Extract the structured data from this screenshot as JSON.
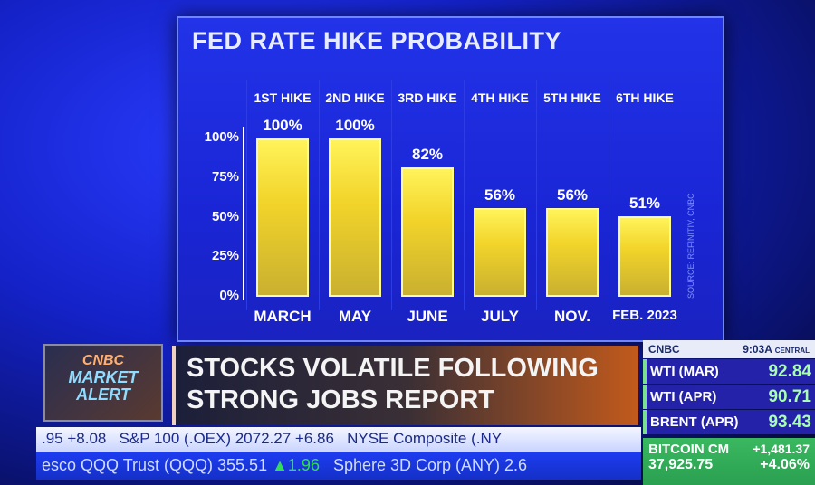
{
  "chart_data": {
    "type": "bar",
    "title": "FED RATE HIKE PROBABILITY",
    "column_headers": [
      "1ST HIKE",
      "2ND HIKE",
      "3RD HIKE",
      "4TH HIKE",
      "5TH HIKE",
      "6TH HIKE"
    ],
    "categories": [
      "MARCH",
      "MAY",
      "JUNE",
      "JULY",
      "NOV.",
      "FEB. 2023"
    ],
    "values": [
      100,
      100,
      82,
      56,
      56,
      51
    ],
    "value_labels": [
      "100%",
      "100%",
      "82%",
      "56%",
      "56%",
      "51%"
    ],
    "yticks": [
      "0%",
      "25%",
      "50%",
      "75%",
      "100%"
    ],
    "ylim": [
      0,
      100
    ],
    "bar_color": "#f2d42a",
    "source": "SOURCE: REFINITIV, CNBC"
  },
  "alert": {
    "brand": "CNBC",
    "line1": "MARKET",
    "line2": "ALERT"
  },
  "headline": {
    "line1": "STOCKS VOLATILE FOLLOWING",
    "line2": "STRONG JOBS REPORT"
  },
  "ticker_top": ".95 +8.08   S&P 100 (.OEX) 2072.27 +6.86   NYSE Composite (.NY",
  "ticker_bottom": {
    "a": "esco QQQ Trust (QQQ) 355.51 ",
    "arrow": "▲",
    "b": "1.96",
    "c": "   Sphere 3D Corp (ANY) 2.6"
  },
  "right_panel": {
    "brand": "CNBC",
    "time": "9:03A",
    "zone": "CENTRAL",
    "rows": [
      {
        "label": "WTI (MAR)",
        "value": "92.84"
      },
      {
        "label": "WTI (APR)",
        "value": "90.71"
      },
      {
        "label": "BRENT (APR)",
        "value": "93.43"
      }
    ],
    "bitcoin": {
      "label": "BITCOIN CM",
      "price": "37,925.75",
      "change": "+1,481.37",
      "pct": "+4.06%"
    }
  }
}
